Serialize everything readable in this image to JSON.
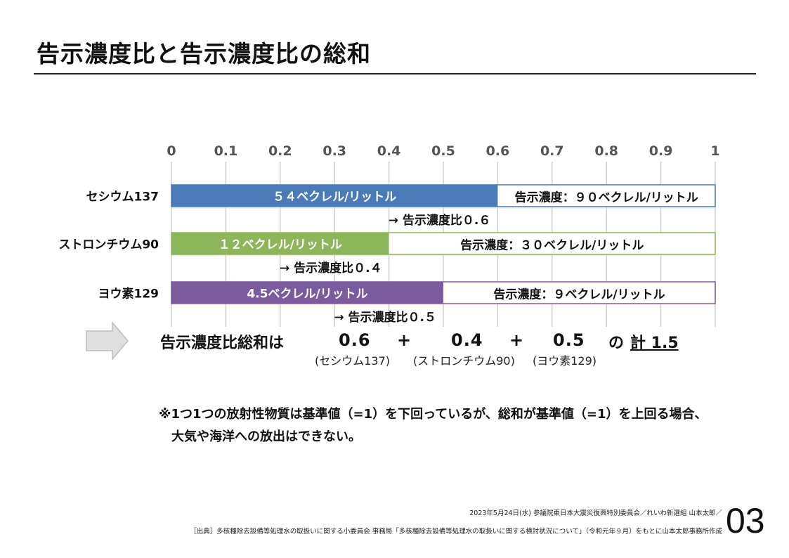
{
  "title": "告示濃度比と告示濃度比の総和",
  "chart_data": {
    "type": "bar",
    "orientation": "horizontal",
    "stacked": true,
    "xlim": [
      0,
      1
    ],
    "xticks": [
      "0",
      "0.1",
      "0.2",
      "0.3",
      "0.4",
      "0.5",
      "0.6",
      "0.7",
      "0.8",
      "0.9",
      "1"
    ],
    "tick_values": [
      0,
      0.1,
      0.2,
      0.3,
      0.4,
      0.5,
      0.6,
      0.7,
      0.8,
      0.9,
      1
    ],
    "grid": true,
    "categories": [
      {
        "name": "セシウム137",
        "value": 0.6,
        "color": "#4a7ab8",
        "bar_label": "５４ベクレル/リットル",
        "limit_label": "告示濃度：９０ベクレル/リットル",
        "ratio_label": "→ 告示濃度比０.６"
      },
      {
        "name": "ストロンチウム90",
        "value": 0.4,
        "color": "#8db55a",
        "bar_label": "１２ベクレル/リットル",
        "limit_label": "告示濃度：３０ベクレル/リットル",
        "ratio_label": "→ 告示濃度比０.４"
      },
      {
        "name": "ヨウ素129",
        "value": 0.5,
        "color": "#7b5a9e",
        "bar_label": "4.5ベクレル/リットル",
        "limit_label": "告示濃度：９ベクレル/リットル",
        "ratio_label": "→ 告示濃度比０.５"
      }
    ]
  },
  "summary": {
    "label": "告示濃度比総和は",
    "values": [
      "0.6",
      "0.4",
      "0.5"
    ],
    "plus": "+",
    "subs": [
      "(セシウム137)",
      "(ストロンチウム90)",
      "(ヨウ素129)"
    ],
    "total_prefix": "の",
    "total": "計 1.5"
  },
  "note_line1": "※1つ1つの放射性物質は基準値（=1）を下回っているが、総和が基準値（=1）を上回る場合、",
  "note_line2": "大気や海洋への放出はできない。",
  "footer_line1": "2023年5月24日(水) 参議院東日本大震災復興特別委員会／れいわ新選組 山本太郎／",
  "footer_line2": "［出典］多核種除去設備等処理水の取扱いに関する小委員会 事務局「多核種除去設備等処理水の取扱いに関する検討状況について」（令和元年９月）をもとに山本太郎事務所作成",
  "page_number": "03"
}
